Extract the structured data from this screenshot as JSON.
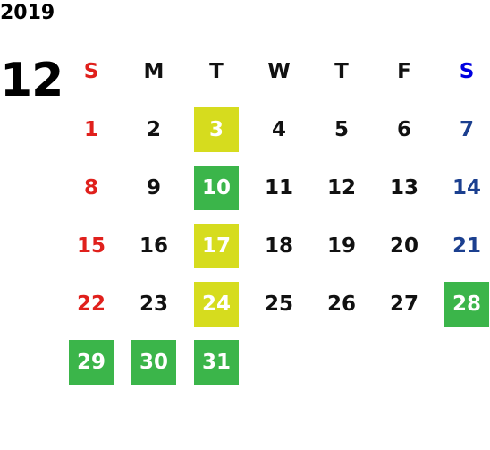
{
  "year": "2019",
  "month": "12",
  "weekdays": [
    "S",
    "M",
    "T",
    "W",
    "T",
    "F",
    "S"
  ],
  "weeks": [
    [
      {
        "day": "1"
      },
      {
        "day": "2"
      },
      {
        "day": "3",
        "fill": "#d6dc1e"
      },
      {
        "day": "4"
      },
      {
        "day": "5"
      },
      {
        "day": "6"
      },
      {
        "day": "7"
      }
    ],
    [
      {
        "day": "8"
      },
      {
        "day": "9"
      },
      {
        "day": "10",
        "fill": "#3bb54a"
      },
      {
        "day": "11"
      },
      {
        "day": "12"
      },
      {
        "day": "13"
      },
      {
        "day": "14"
      }
    ],
    [
      {
        "day": "15"
      },
      {
        "day": "16"
      },
      {
        "day": "17",
        "fill": "#d6dc1e"
      },
      {
        "day": "18"
      },
      {
        "day": "19"
      },
      {
        "day": "20"
      },
      {
        "day": "21"
      }
    ],
    [
      {
        "day": "22"
      },
      {
        "day": "23"
      },
      {
        "day": "24",
        "fill": "#d6dc1e"
      },
      {
        "day": "25"
      },
      {
        "day": "26"
      },
      {
        "day": "27"
      },
      {
        "day": "28",
        "fill": "#3bb54a"
      }
    ],
    [
      {
        "day": "29",
        "fill": "#3bb54a"
      },
      {
        "day": "30",
        "fill": "#3bb54a"
      },
      {
        "day": "31",
        "fill": "#3bb54a"
      }
    ]
  ]
}
